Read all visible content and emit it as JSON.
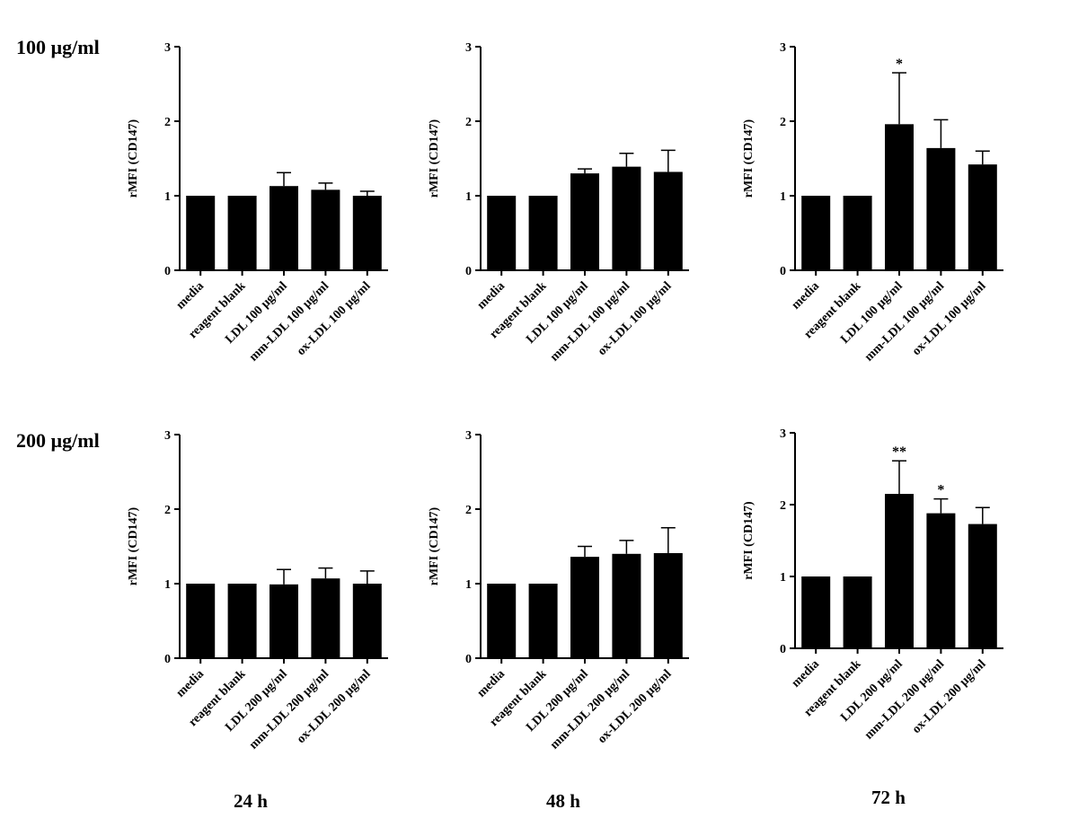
{
  "row_labels": [
    "100 µg/ml",
    "200 µg/ml"
  ],
  "col_labels": [
    "24 h",
    "48 h",
    "72 h"
  ],
  "chart_data": [
    {
      "type": "bar",
      "row": 0,
      "col": 0,
      "ylabel": "rMFI (CD147)",
      "ylim": [
        0,
        3
      ],
      "yticks": [
        "0",
        "1",
        "2",
        "3"
      ],
      "categories": [
        "media",
        "reagent blank",
        "LDL 100 µg/ml",
        "mm-LDL 100 µg/ml",
        "ox-LDL 100 µg/ml"
      ],
      "values": [
        1.0,
        1.0,
        1.13,
        1.08,
        1.0
      ],
      "error_upper": [
        0,
        0,
        0.18,
        0.09,
        0.06
      ],
      "annotations": [
        "",
        "",
        "",
        "",
        ""
      ]
    },
    {
      "type": "bar",
      "row": 0,
      "col": 1,
      "ylabel": "rMFI (CD147)",
      "ylim": [
        0,
        3
      ],
      "yticks": [
        "0",
        "1",
        "2",
        "3"
      ],
      "categories": [
        "media",
        "reagent blank",
        "LDL 100 µg/ml",
        "mm-LDL 100 µg/ml",
        "ox-LDL 100 µg/ml"
      ],
      "values": [
        1.0,
        1.0,
        1.3,
        1.39,
        1.32
      ],
      "error_upper": [
        0,
        0,
        0.06,
        0.18,
        0.29
      ],
      "annotations": [
        "",
        "",
        "",
        "",
        ""
      ]
    },
    {
      "type": "bar",
      "row": 0,
      "col": 2,
      "ylabel": "rMFI (CD147)",
      "ylim": [
        0,
        3
      ],
      "yticks": [
        "0",
        "1",
        "2",
        "3"
      ],
      "categories": [
        "media",
        "reagent blank",
        "LDL 100 µg/ml",
        "mm-LDL 100 µg/ml",
        "ox-LDL 100 µg/ml"
      ],
      "values": [
        1.0,
        1.0,
        1.96,
        1.64,
        1.42
      ],
      "error_upper": [
        0,
        0,
        0.69,
        0.38,
        0.18
      ],
      "annotations": [
        "",
        "",
        "*",
        "",
        ""
      ]
    },
    {
      "type": "bar",
      "row": 1,
      "col": 0,
      "ylabel": "rMFI (CD147)",
      "ylim": [
        0,
        3
      ],
      "yticks": [
        "0",
        "1",
        "2",
        "3"
      ],
      "categories": [
        "media",
        "reagent blank",
        "LDL 200 µg/ml",
        "mm-LDL 200 µg/ml",
        "ox-LDL 200 µg/ml"
      ],
      "values": [
        1.0,
        1.0,
        0.99,
        1.07,
        1.0
      ],
      "error_upper": [
        0,
        0,
        0.2,
        0.14,
        0.17
      ],
      "annotations": [
        "",
        "",
        "",
        "",
        ""
      ]
    },
    {
      "type": "bar",
      "row": 1,
      "col": 1,
      "ylabel": "rMFI (CD147)",
      "ylim": [
        0,
        3
      ],
      "yticks": [
        "0",
        "1",
        "2",
        "3"
      ],
      "categories": [
        "media",
        "reagent blank",
        "LDL 200 µg/ml",
        "mm-LDL 200 µg/ml",
        "ox-LDL 200 µg/ml"
      ],
      "values": [
        1.0,
        1.0,
        1.36,
        1.4,
        1.41
      ],
      "error_upper": [
        0,
        0,
        0.14,
        0.18,
        0.34
      ],
      "annotations": [
        "",
        "",
        "",
        "",
        ""
      ]
    },
    {
      "type": "bar",
      "row": 1,
      "col": 2,
      "ylabel": "rMFI (CD147)",
      "ylim": [
        0,
        3
      ],
      "yticks": [
        "0",
        "1",
        "2",
        "3"
      ],
      "categories": [
        "media",
        "reagent blank",
        "LDL 200 µg/ml",
        "mm-LDL 200 µg/ml",
        "ox-LDL 200 µg/ml"
      ],
      "values": [
        1.0,
        1.0,
        2.15,
        1.88,
        1.73
      ],
      "error_upper": [
        0,
        0,
        0.46,
        0.2,
        0.23
      ],
      "annotations": [
        "",
        "",
        "**",
        "*",
        ""
      ]
    }
  ],
  "colors": {
    "bar": "#000000",
    "axis": "#000000",
    "background": "#ffffff"
  }
}
